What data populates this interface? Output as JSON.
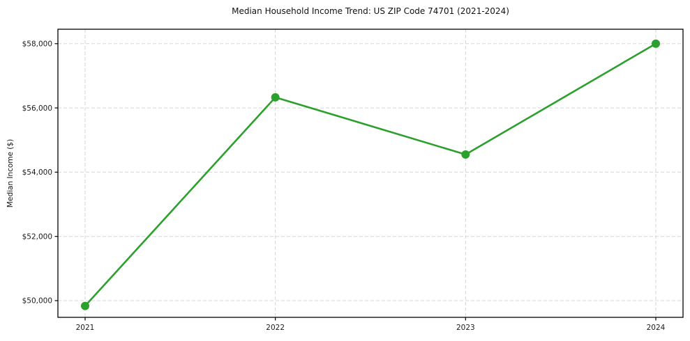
{
  "chart_data": {
    "type": "line",
    "title": "Median Household Income Trend: US ZIP Code 74701 (2021-2024)",
    "xlabel": "",
    "ylabel": "Median Income ($)",
    "x": [
      "2021",
      "2022",
      "2023",
      "2024"
    ],
    "values": [
      49835,
      56330,
      54550,
      58000
    ],
    "ylim": [
      49480,
      58450
    ],
    "yticks": [
      50000,
      52000,
      54000,
      56000,
      58000
    ],
    "ytick_labels": [
      "$50,000",
      "$52,000",
      "$54,000",
      "$56,000",
      "$58,000"
    ],
    "xtick_labels": [
      "2021",
      "2022",
      "2023",
      "2024"
    ],
    "grid": true,
    "grid_style": "dashed",
    "legend": "none",
    "colors": {
      "line": "#2ca02c",
      "marker": "#2ca02c",
      "grid": "#d5d5d5",
      "spine": "#000000",
      "text": "#1a1a1a",
      "background": "#ffffff"
    }
  }
}
